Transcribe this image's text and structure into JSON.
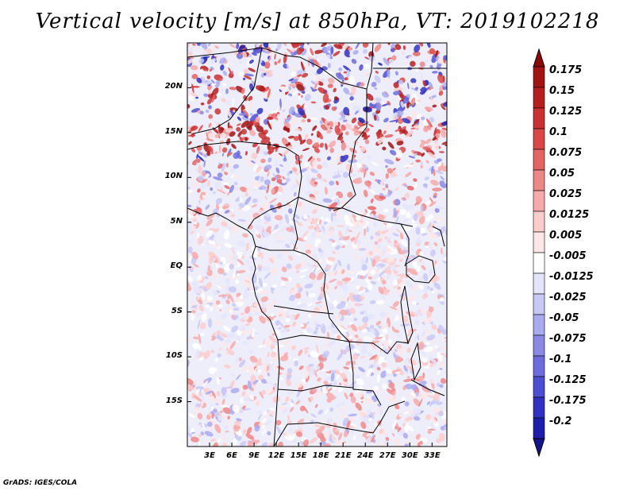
{
  "title": "Vertical velocity [m/s] at 850hPa, VT: 2019102218",
  "map": {
    "region": "Central Africa",
    "lat_range": [
      -20,
      25
    ],
    "lon_range": [
      0,
      35
    ],
    "lat_labels": [
      {
        "lat": 20,
        "label": "20N"
      },
      {
        "lat": 15,
        "label": "15N"
      },
      {
        "lat": 10,
        "label": "10N"
      },
      {
        "lat": 5,
        "label": "5N"
      },
      {
        "lat": 0,
        "label": "EQ"
      },
      {
        "lat": -5,
        "label": "5S"
      },
      {
        "lat": -10,
        "label": "10S"
      },
      {
        "lat": -15,
        "label": "15S"
      }
    ],
    "lon_labels": [
      {
        "lon": 3,
        "label": "3E"
      },
      {
        "lon": 6,
        "label": "6E"
      },
      {
        "lon": 9,
        "label": "9E"
      },
      {
        "lon": 12,
        "label": "12E"
      },
      {
        "lon": 15,
        "label": "15E"
      },
      {
        "lon": 18,
        "label": "18E"
      },
      {
        "lon": 21,
        "label": "21E"
      },
      {
        "lon": 24,
        "label": "24E"
      },
      {
        "lon": 27,
        "label": "27E"
      },
      {
        "lon": 30,
        "label": "30E"
      },
      {
        "lon": 33,
        "label": "33E"
      }
    ]
  },
  "colorbar": {
    "levels": [
      {
        "label": "0.175",
        "color": "#a01414"
      },
      {
        "label": "0.15",
        "color": "#b42020"
      },
      {
        "label": "0.125",
        "color": "#c83232"
      },
      {
        "label": "0.1",
        "color": "#d84848"
      },
      {
        "label": "0.075",
        "color": "#e46464"
      },
      {
        "label": "0.05",
        "color": "#ee8888"
      },
      {
        "label": "0.025",
        "color": "#f6aaaa"
      },
      {
        "label": "0.0125",
        "color": "#fbcccc"
      },
      {
        "label": "0.005",
        "color": "#fde6e6"
      },
      {
        "label": "-0.005",
        "color": "#ffffff"
      },
      {
        "label": "-0.0125",
        "color": "#e4e4fb"
      },
      {
        "label": "-0.025",
        "color": "#c8c8f4"
      },
      {
        "label": "-0.05",
        "color": "#aaaaee"
      },
      {
        "label": "-0.075",
        "color": "#8a8ae4"
      },
      {
        "label": "-0.1",
        "color": "#6c6cdc"
      },
      {
        "label": "-0.125",
        "color": "#4e4ed0"
      },
      {
        "label": "-0.175",
        "color": "#3232c0"
      },
      {
        "label": "-0.2",
        "color": "#1e1eaa"
      }
    ],
    "top_color": "#8c0a0a",
    "bottom_color": "#14148c"
  },
  "footer": "GrADS: IGES/COLA"
}
